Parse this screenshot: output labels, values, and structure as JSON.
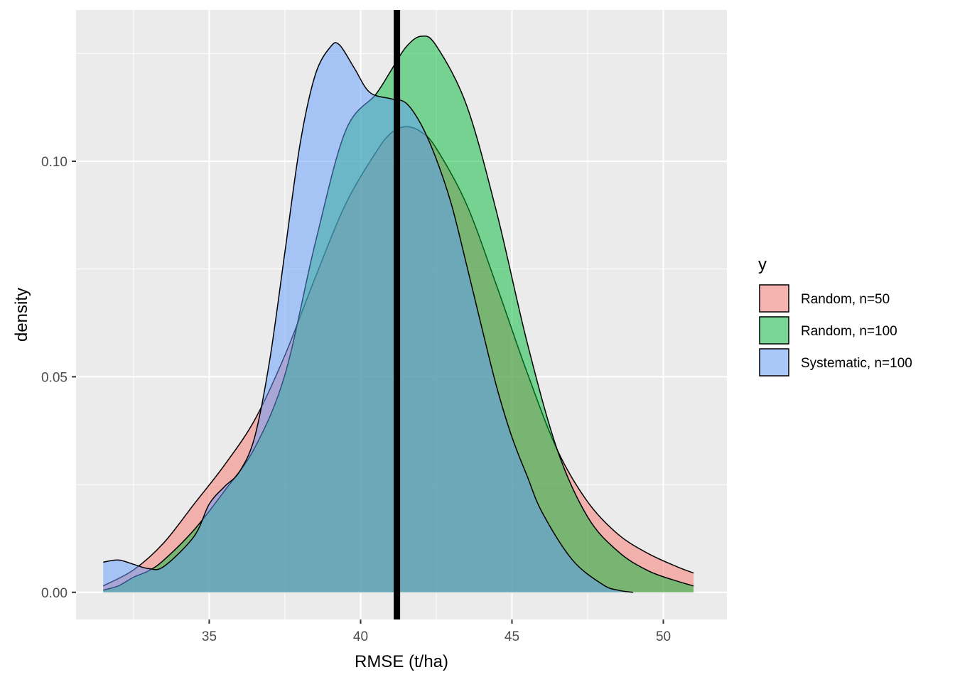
{
  "chart_data": {
    "type": "area",
    "subtype": "density",
    "xlabel": "RMSE (t/ha)",
    "ylabel": "density",
    "xlim": [
      30.6,
      52.1
    ],
    "ylim": [
      -0.0063,
      0.1351
    ],
    "x_ticks": [
      35,
      40,
      45,
      50
    ],
    "x_tick_labels": [
      "35",
      "40",
      "45",
      "50"
    ],
    "y_ticks": [
      0.0,
      0.05,
      0.1
    ],
    "y_tick_labels": [
      "0.00",
      "0.05",
      "0.10"
    ],
    "grid": true,
    "legend": {
      "title": "y",
      "position": "right"
    },
    "vline": {
      "x": 41.2
    },
    "series": [
      {
        "name": "Random, n=50",
        "color": "#F8766D",
        "x": [
          31.5,
          32.5,
          33.5,
          34.5,
          35.5,
          36.5,
          37.5,
          38.5,
          39.5,
          40.5,
          41.0,
          41.5,
          42.0,
          42.5,
          43.5,
          44.5,
          45.5,
          46.5,
          47.5,
          48.5,
          49.5,
          50.5,
          51.0
        ],
        "y": [
          0.0015,
          0.0052,
          0.0115,
          0.0205,
          0.0295,
          0.04,
          0.055,
          0.073,
          0.09,
          0.102,
          0.1065,
          0.108,
          0.1068,
          0.103,
          0.09,
          0.071,
          0.051,
          0.033,
          0.021,
          0.0135,
          0.009,
          0.0058,
          0.0045
        ]
      },
      {
        "name": "Random, n=100",
        "color": "#00BA38",
        "x": [
          31.5,
          32.0,
          32.5,
          33.0,
          33.5,
          34.5,
          35.5,
          36.5,
          37.5,
          38.5,
          39.5,
          40.5,
          41.0,
          41.5,
          42.0,
          42.5,
          43.5,
          44.5,
          45.5,
          46.5,
          47.5,
          48.5,
          49.5,
          50.5,
          51.0
        ],
        "y": [
          0.0005,
          0.0015,
          0.0035,
          0.005,
          0.0075,
          0.0145,
          0.0235,
          0.0335,
          0.0505,
          0.081,
          0.107,
          0.1155,
          0.121,
          0.1265,
          0.129,
          0.1268,
          0.113,
          0.088,
          0.058,
          0.033,
          0.0175,
          0.0095,
          0.005,
          0.0025,
          0.0015
        ]
      },
      {
        "name": "Systematic, n=100",
        "color": "#619CFF",
        "x": [
          31.5,
          32.0,
          32.5,
          33.0,
          33.5,
          34.5,
          35.0,
          35.5,
          36.0,
          36.5,
          37.0,
          37.5,
          38.0,
          38.5,
          39.0,
          39.3,
          39.8,
          40.3,
          41.0,
          41.5,
          42.0,
          42.5,
          43.0,
          43.5,
          44.0,
          44.5,
          45.0,
          45.5,
          46.0,
          47.0,
          48.0,
          48.5,
          49.0
        ],
        "y": [
          0.007,
          0.0075,
          0.0065,
          0.0055,
          0.006,
          0.013,
          0.0205,
          0.0245,
          0.028,
          0.036,
          0.054,
          0.079,
          0.104,
          0.12,
          0.1265,
          0.127,
          0.1215,
          0.116,
          0.1145,
          0.1135,
          0.1085,
          0.1005,
          0.09,
          0.076,
          0.0615,
          0.0475,
          0.036,
          0.027,
          0.0185,
          0.0075,
          0.0018,
          0.0005,
          0.0
        ]
      }
    ]
  }
}
